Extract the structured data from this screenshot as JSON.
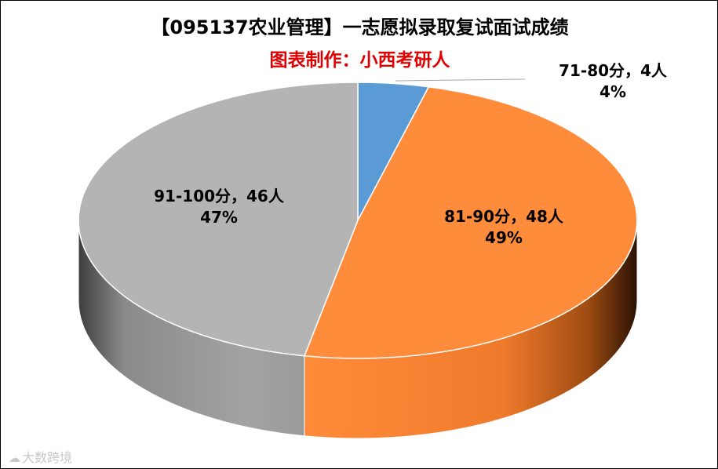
{
  "chart_data": {
    "type": "pie",
    "title": "【095137农业管理】一志愿拟录取复试面试成绩",
    "subtitle": "图表制作：小西考研人",
    "slices": [
      {
        "label": "71-80分，4人",
        "value": 4,
        "percent": "4%",
        "color": "#5b9bd5"
      },
      {
        "label": "81-90分，48人",
        "value": 48,
        "percent": "49%",
        "color": "#ff8c3a"
      },
      {
        "label": "91-100分，46人",
        "value": 46,
        "percent": "47%",
        "color": "#b4b4b4"
      }
    ],
    "legend": "none",
    "style": "3d-pie"
  },
  "watermark": {
    "icon": "cloud-logo-icon",
    "text": "大数跨境"
  }
}
